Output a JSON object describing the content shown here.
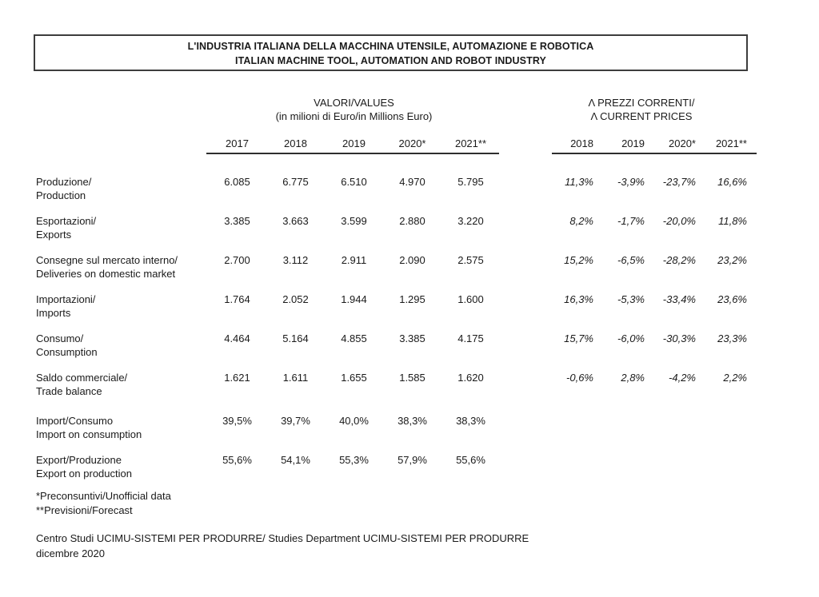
{
  "title": {
    "line1": "L'INDUSTRIA ITALIANA DELLA MACCHINA UTENSILE, AUTOMAZIONE E ROBOTICA",
    "line2": "ITALIAN MACHINE TOOL, AUTOMATION AND ROBOT INDUSTRY"
  },
  "values_group": {
    "header_line1": "VALORI/VALUES",
    "header_line2": "(in milioni di Euro/in Millions Euro)",
    "years": [
      "2017",
      "2018",
      "2019",
      "2020*",
      "2021**"
    ]
  },
  "prices_group": {
    "header_line1": "Λ PREZZI CORRENTI/",
    "header_line2": "Λ CURRENT PRICES",
    "years": [
      "2018",
      "2019",
      "2020*",
      "2021**"
    ]
  },
  "rows": [
    {
      "label_it": "Produzione/",
      "label_en": "Production",
      "values": [
        "6.085",
        "6.775",
        "6.510",
        "4.970",
        "5.795"
      ],
      "changes": [
        "11,3%",
        "-3,9%",
        "-23,7%",
        "16,6%"
      ]
    },
    {
      "label_it": "Esportazioni/",
      "label_en": "Exports",
      "values": [
        "3.385",
        "3.663",
        "3.599",
        "2.880",
        "3.220"
      ],
      "changes": [
        "8,2%",
        "-1,7%",
        "-20,0%",
        "11,8%"
      ]
    },
    {
      "label_it": "Consegne sul mercato interno/",
      "label_en": "Deliveries on domestic market",
      "values": [
        "2.700",
        "3.112",
        "2.911",
        "2.090",
        "2.575"
      ],
      "changes": [
        "15,2%",
        "-6,5%",
        "-28,2%",
        "23,2%"
      ]
    },
    {
      "label_it": "Importazioni/",
      "label_en": "Imports",
      "values": [
        "1.764",
        "2.052",
        "1.944",
        "1.295",
        "1.600"
      ],
      "changes": [
        "16,3%",
        "-5,3%",
        "-33,4%",
        "23,6%"
      ]
    },
    {
      "label_it": "Consumo/",
      "label_en": "Consumption",
      "values": [
        "4.464",
        "5.164",
        "4.855",
        "3.385",
        "4.175"
      ],
      "changes": [
        "15,7%",
        "-6,0%",
        "-30,3%",
        "23,3%"
      ]
    },
    {
      "label_it": "Saldo commerciale/",
      "label_en": "Trade balance",
      "values": [
        "1.621",
        "1.611",
        "1.655",
        "1.585",
        "1.620"
      ],
      "changes": [
        "-0,6%",
        "2,8%",
        "-4,2%",
        "2,2%"
      ]
    },
    {
      "label_it": "Import/Consumo",
      "label_en": "Import on consumption",
      "values": [
        "39,5%",
        "39,7%",
        "40,0%",
        "38,3%",
        "38,3%"
      ],
      "changes": []
    },
    {
      "label_it": "Export/Produzione",
      "label_en": "Export on production",
      "values": [
        "55,6%",
        "54,1%",
        "55,3%",
        "57,9%",
        "55,6%"
      ],
      "changes": []
    }
  ],
  "footnotes": {
    "line1": "*Preconsuntivi/Unofficial data",
    "line2": "**Previsioni/Forecast"
  },
  "footer": {
    "line1": "Centro Studi UCIMU-SISTEMI PER PRODURRE/ Studies Department UCIMU-SISTEMI PER PRODURRE",
    "line2": "dicembre 2020"
  },
  "colors": {
    "text": "#1a1a1a",
    "rule": "#2e2e2e",
    "box_border": "#3d3d3d",
    "background": "#ffffff"
  },
  "chart_data": {
    "type": "table",
    "title": "L'INDUSTRIA ITALIANA DELLA MACCHINA UTENSILE, AUTOMAZIONE E ROBOTICA / ITALIAN MACHINE TOOL, AUTOMATION AND ROBOT INDUSTRY",
    "values_unit": "milioni di Euro / Millions Euro",
    "value_years": [
      2017,
      2018,
      2019,
      2020,
      2021
    ],
    "change_years_current_prices": [
      2018,
      2019,
      2020,
      2021
    ],
    "series": [
      {
        "name": "Produzione/Production",
        "values": [
          6085,
          6775,
          6510,
          4970,
          5795
        ],
        "pct_change": [
          11.3,
          -3.9,
          -23.7,
          16.6
        ]
      },
      {
        "name": "Esportazioni/Exports",
        "values": [
          3385,
          3663,
          3599,
          2880,
          3220
        ],
        "pct_change": [
          8.2,
          -1.7,
          -20.0,
          11.8
        ]
      },
      {
        "name": "Consegne sul mercato interno/Deliveries on domestic market",
        "values": [
          2700,
          3112,
          2911,
          2090,
          2575
        ],
        "pct_change": [
          15.2,
          -6.5,
          -28.2,
          23.2
        ]
      },
      {
        "name": "Importazioni/Imports",
        "values": [
          1764,
          2052,
          1944,
          1295,
          1600
        ],
        "pct_change": [
          16.3,
          -5.3,
          -33.4,
          23.6
        ]
      },
      {
        "name": "Consumo/Consumption",
        "values": [
          4464,
          5164,
          4855,
          3385,
          4175
        ],
        "pct_change": [
          15.7,
          -6.0,
          -30.3,
          23.3
        ]
      },
      {
        "name": "Saldo commerciale/Trade balance",
        "values": [
          1621,
          1611,
          1655,
          1585,
          1620
        ],
        "pct_change": [
          -0.6,
          2.8,
          -4.2,
          2.2
        ]
      },
      {
        "name": "Import/Consumo (Import on consumption)",
        "values_pct": [
          39.5,
          39.7,
          40.0,
          38.3,
          38.3
        ]
      },
      {
        "name": "Export/Produzione (Export on production)",
        "values_pct": [
          55.6,
          54.1,
          55.3,
          57.9,
          55.6
        ]
      }
    ],
    "notes": [
      "* Preconsuntivi/Unofficial data (2020)",
      "** Previsioni/Forecast (2021)"
    ]
  }
}
